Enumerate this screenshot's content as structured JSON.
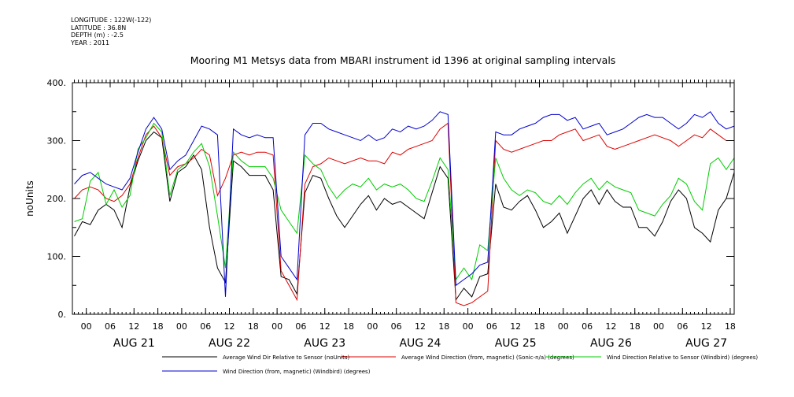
{
  "header": {
    "lines": [
      "LONGITUDE : 122W(-122)",
      "LATITUDE : 36.8N",
      "DEPTH (m) : -2.5",
      "YEAR : 2011"
    ]
  },
  "chart_data": {
    "type": "line",
    "title": "Mooring M1 Metsys data from MBARI instrument id 1396 at original sampling intervals",
    "ylabel": "noUnits",
    "xlabel": "",
    "ylim": [
      0,
      400
    ],
    "yticks": [
      "0.",
      "100.",
      "200.",
      "300.",
      "400."
    ],
    "x_hour_ticks": [
      "00",
      "06",
      "12",
      "18",
      "00",
      "06",
      "12",
      "18",
      "00",
      "06",
      "12",
      "18",
      "00",
      "06",
      "12",
      "18",
      "00",
      "06",
      "12",
      "18",
      "00",
      "06",
      "12",
      "18",
      "00",
      "06",
      "12",
      "18"
    ],
    "x_day_labels": [
      "AUG 21",
      "AUG 22",
      "AUG 23",
      "AUG 24",
      "AUG 25",
      "AUG 26",
      "AUG 27"
    ],
    "x_range_hours": [
      -3.5,
      163
    ],
    "grid": false,
    "legend_placement": "bottom",
    "series": [
      {
        "name": "Average Wind Dir Relative to Sensor (noUnits)",
        "color": "#000000",
        "x": [
          -3,
          -1,
          1,
          3,
          5,
          7,
          9,
          11,
          13,
          15,
          17,
          19,
          21,
          23,
          25,
          27,
          29,
          31,
          33,
          35,
          37,
          39,
          41,
          43,
          45,
          47,
          49,
          51,
          53,
          55,
          57,
          59,
          61,
          63,
          65,
          67,
          69,
          71,
          73,
          75,
          77,
          79,
          81,
          83,
          85,
          87,
          89,
          91,
          93,
          95,
          97,
          99,
          101,
          103,
          105,
          107,
          109,
          111,
          113,
          115,
          117,
          119,
          121,
          123,
          125,
          127,
          129,
          131,
          133,
          135,
          137,
          139,
          141,
          143,
          145,
          147,
          149,
          151,
          153,
          155,
          157,
          159,
          161,
          163
        ],
        "y": [
          135,
          160,
          155,
          180,
          190,
          180,
          150,
          220,
          265,
          300,
          315,
          305,
          195,
          245,
          255,
          275,
          250,
          150,
          80,
          55,
          265,
          255,
          240,
          240,
          240,
          215,
          65,
          60,
          35,
          210,
          240,
          235,
          200,
          170,
          150,
          170,
          190,
          205,
          180,
          200,
          190,
          195,
          185,
          175,
          165,
          210,
          255,
          235,
          25,
          45,
          30,
          65,
          70,
          225,
          185,
          180,
          195,
          205,
          180,
          150,
          160,
          175,
          140,
          170,
          200,
          215,
          190,
          215,
          195,
          185,
          185,
          150,
          150,
          135,
          160,
          195,
          215,
          200,
          150,
          140,
          125,
          180,
          200,
          245
        ]
      },
      {
        "name": "Average Wind Direction (from, magnetic) (Sonic-n/a) (degrees)",
        "color": "#dd0000",
        "x": [
          -3,
          -1,
          1,
          3,
          5,
          7,
          9,
          11,
          13,
          15,
          17,
          19,
          21,
          23,
          25,
          27,
          29,
          31,
          33,
          35,
          37,
          39,
          41,
          43,
          45,
          47,
          49,
          51,
          53,
          55,
          57,
          59,
          61,
          63,
          65,
          67,
          69,
          71,
          73,
          75,
          77,
          79,
          81,
          83,
          85,
          87,
          89,
          91,
          93,
          95,
          97,
          99,
          101,
          103,
          105,
          107,
          109,
          111,
          113,
          115,
          117,
          119,
          121,
          123,
          125,
          127,
          129,
          131,
          133,
          135,
          137,
          139,
          141,
          143,
          145,
          147,
          149,
          151,
          153,
          155,
          157,
          159,
          161,
          163
        ],
        "y": [
          200,
          215,
          220,
          215,
          200,
          195,
          205,
          225,
          270,
          310,
          325,
          305,
          240,
          255,
          260,
          270,
          285,
          275,
          205,
          235,
          275,
          280,
          275,
          280,
          280,
          275,
          75,
          50,
          25,
          225,
          255,
          260,
          270,
          265,
          260,
          265,
          270,
          265,
          265,
          260,
          280,
          275,
          285,
          290,
          295,
          300,
          320,
          330,
          20,
          15,
          20,
          30,
          40,
          300,
          285,
          280,
          285,
          290,
          295,
          300,
          300,
          310,
          315,
          320,
          300,
          305,
          310,
          290,
          285,
          290,
          295,
          300,
          305,
          310,
          305,
          300,
          290,
          300,
          310,
          305,
          320,
          310,
          300,
          300
        ]
      },
      {
        "name": "Wind Direction Relative to Sensor (Windbird) (degrees)",
        "color": "#00cc00",
        "x": [
          -3,
          -1,
          1,
          3,
          5,
          7,
          9,
          11,
          13,
          15,
          17,
          19,
          21,
          23,
          25,
          27,
          29,
          31,
          33,
          35,
          37,
          39,
          41,
          43,
          45,
          47,
          49,
          51,
          53,
          55,
          57,
          59,
          61,
          63,
          65,
          67,
          69,
          71,
          73,
          75,
          77,
          79,
          81,
          83,
          85,
          87,
          89,
          91,
          93,
          95,
          97,
          99,
          101,
          103,
          105,
          107,
          109,
          111,
          113,
          115,
          117,
          119,
          121,
          123,
          125,
          127,
          129,
          131,
          133,
          135,
          137,
          139,
          141,
          143,
          145,
          147,
          149,
          151,
          153,
          155,
          157,
          159,
          161,
          163
        ],
        "y": [
          160,
          165,
          230,
          245,
          190,
          215,
          185,
          205,
          285,
          305,
          330,
          315,
          205,
          250,
          260,
          280,
          295,
          255,
          170,
          80,
          280,
          265,
          255,
          255,
          255,
          235,
          180,
          160,
          140,
          275,
          260,
          250,
          220,
          200,
          215,
          225,
          220,
          235,
          215,
          225,
          220,
          225,
          215,
          200,
          195,
          230,
          270,
          250,
          60,
          80,
          60,
          120,
          110,
          270,
          235,
          215,
          205,
          215,
          210,
          195,
          190,
          205,
          190,
          210,
          225,
          235,
          215,
          230,
          220,
          215,
          210,
          180,
          175,
          170,
          190,
          205,
          235,
          225,
          195,
          180,
          260,
          270,
          250,
          270
        ]
      },
      {
        "name": "Wind Direction (from, magnetic) (Windbird) (degrees)",
        "color": "#0000cc",
        "x": [
          -3,
          -1,
          1,
          3,
          5,
          7,
          9,
          11,
          13,
          15,
          17,
          19,
          21,
          23,
          25,
          27,
          29,
          31,
          33,
          35,
          37,
          39,
          41,
          43,
          45,
          47,
          49,
          51,
          53,
          55,
          57,
          59,
          61,
          63,
          65,
          67,
          69,
          71,
          73,
          75,
          77,
          79,
          81,
          83,
          85,
          87,
          89,
          91,
          93,
          95,
          97,
          99,
          101,
          103,
          105,
          107,
          109,
          111,
          113,
          115,
          117,
          119,
          121,
          123,
          125,
          127,
          129,
          131,
          133,
          135,
          137,
          139,
          141,
          143,
          145,
          147,
          149,
          151,
          153,
          155,
          157,
          159,
          161,
          163
        ],
        "y": [
          225,
          240,
          245,
          235,
          225,
          220,
          215,
          235,
          280,
          320,
          340,
          320,
          250,
          265,
          275,
          300,
          325,
          320,
          310,
          30,
          320,
          310,
          305,
          310,
          305,
          305,
          100,
          80,
          60,
          310,
          330,
          330,
          320,
          315,
          310,
          305,
          300,
          310,
          300,
          305,
          320,
          315,
          325,
          320,
          325,
          335,
          350,
          345,
          50,
          60,
          70,
          85,
          90,
          315,
          310,
          310,
          320,
          325,
          330,
          340,
          345,
          345,
          335,
          340,
          320,
          325,
          330,
          310,
          315,
          320,
          330,
          340,
          345,
          340,
          340,
          330,
          320,
          330,
          345,
          340,
          350,
          330,
          320,
          325
        ]
      }
    ]
  }
}
